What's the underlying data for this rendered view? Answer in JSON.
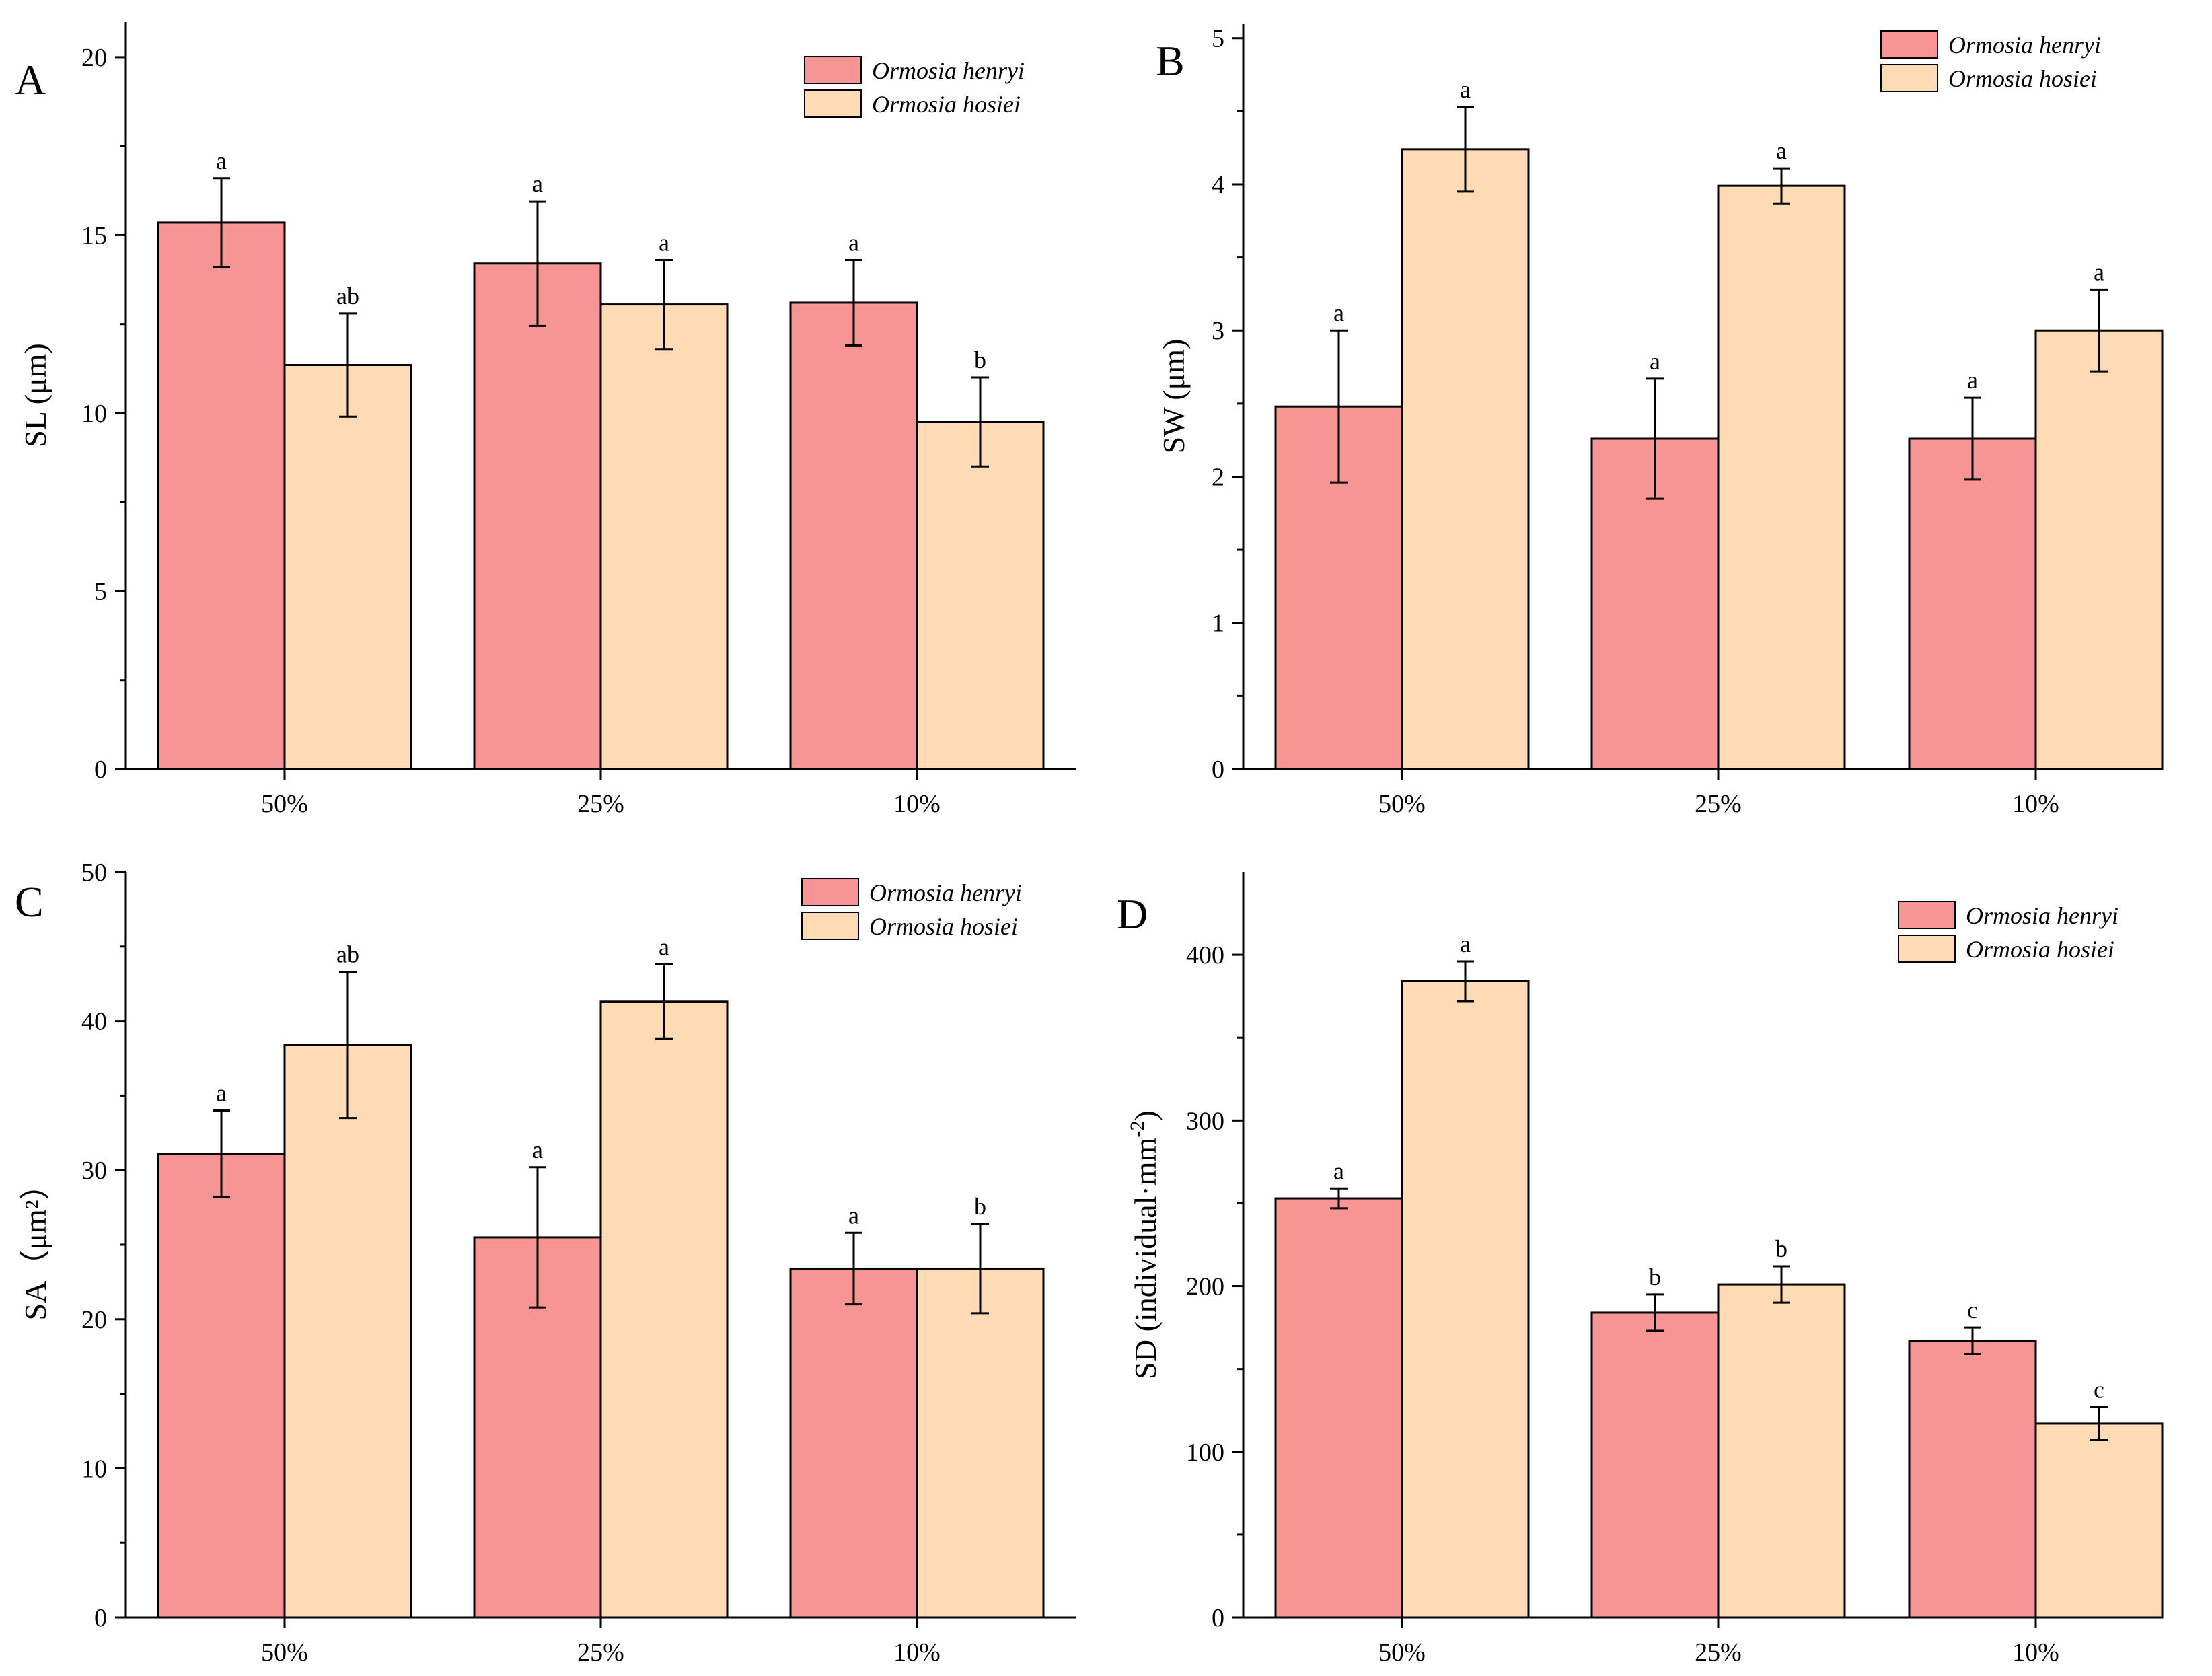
{
  "colors": {
    "henryi": "#f79494",
    "hosiei": "#fedbb5",
    "axis": "#000000"
  },
  "legend": {
    "henryi": "Ormosia henryi",
    "hosiei": "Ormosia hosiei"
  },
  "chart_data": [
    {
      "panel": "A",
      "type": "bar",
      "categories": [
        "50%",
        "25%",
        "10%"
      ],
      "ylabel": "SL (μm)",
      "ylim": [
        0,
        21
      ],
      "yticks": [
        0,
        5,
        10,
        15,
        20
      ],
      "ytick_labels": [
        "0",
        "5",
        "10",
        "15",
        "20"
      ],
      "legend_position": "top-right",
      "series": [
        {
          "name": "Ormosia henryi",
          "values": [
            15.35,
            14.2,
            13.1
          ],
          "errors": [
            1.25,
            1.75,
            1.2
          ],
          "labels": [
            "a",
            "a",
            "a"
          ]
        },
        {
          "name": "Ormosia hosiei",
          "values": [
            11.35,
            13.05,
            9.75
          ],
          "errors": [
            1.45,
            1.25,
            1.25
          ],
          "labels": [
            "ab",
            "a",
            "b"
          ]
        }
      ]
    },
    {
      "panel": "B",
      "type": "bar",
      "categories": [
        "50%",
        "25%",
        "10%"
      ],
      "ylabel": "SW (μm)",
      "ylim": [
        0,
        5.1
      ],
      "yticks": [
        0,
        1,
        2,
        3,
        4,
        5
      ],
      "ytick_labels": [
        "0",
        "1",
        "2",
        "3",
        "4",
        "5"
      ],
      "legend_position": "top-right",
      "series": [
        {
          "name": "Ormosia henryi",
          "values": [
            2.48,
            2.26,
            2.26
          ],
          "errors": [
            0.52,
            0.41,
            0.28
          ],
          "labels": [
            "a",
            "a",
            "a"
          ]
        },
        {
          "name": "Ormosia hosiei",
          "values": [
            4.24,
            3.99,
            3.0
          ],
          "errors": [
            0.29,
            0.12,
            0.28
          ],
          "labels": [
            "a",
            "a",
            "a"
          ]
        }
      ]
    },
    {
      "panel": "C",
      "type": "bar",
      "categories": [
        "50%",
        "25%",
        "10%"
      ],
      "ylabel": "SA（μm²）",
      "ylim": [
        0,
        50
      ],
      "yticks": [
        0,
        10,
        20,
        30,
        40,
        50
      ],
      "ytick_labels": [
        "0",
        "10",
        "20",
        "30",
        "40",
        "50"
      ],
      "legend_position": "top-right",
      "series": [
        {
          "name": "Ormosia henryi",
          "values": [
            31.1,
            25.5,
            23.4
          ],
          "errors": [
            2.9,
            4.7,
            2.4
          ],
          "labels": [
            "a",
            "a",
            "a"
          ]
        },
        {
          "name": "Ormosia hosiei",
          "values": [
            38.4,
            41.3,
            23.4
          ],
          "errors": [
            4.9,
            2.5,
            3.0
          ],
          "labels": [
            "ab",
            "a",
            "b"
          ]
        }
      ]
    },
    {
      "panel": "D",
      "type": "bar",
      "categories": [
        "50%",
        "25%",
        "10%"
      ],
      "ylabel": "SD (individual·mm",
      "ylabel_superscript": "-2",
      "ylabel_tail": ")",
      "ylim": [
        0,
        450
      ],
      "yticks": [
        0,
        100,
        200,
        300,
        400
      ],
      "ytick_labels": [
        "0",
        "100",
        "200",
        "300",
        "400"
      ],
      "legend_position": "top-right",
      "series": [
        {
          "name": "Ormosia henryi",
          "values": [
            253,
            184,
            167
          ],
          "errors": [
            6,
            11,
            8
          ],
          "labels": [
            "a",
            "b",
            "c"
          ]
        },
        {
          "name": "Ormosia hosiei",
          "values": [
            384,
            201,
            117
          ],
          "errors": [
            12,
            11,
            10
          ],
          "labels": [
            "a",
            "b",
            "c"
          ]
        }
      ]
    }
  ]
}
